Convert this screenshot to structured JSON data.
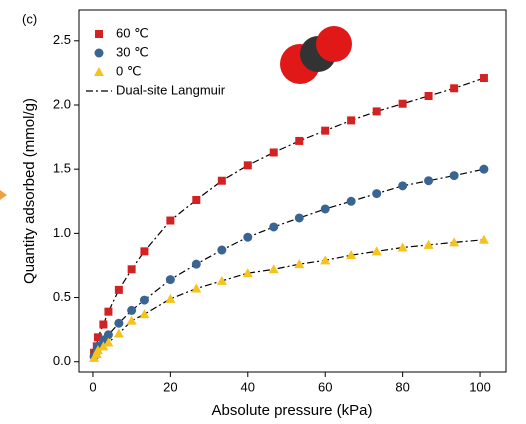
{
  "chart_data": {
    "type": "scatter",
    "annotation": "(c)",
    "x_label": "Absolute pressure (kPa)",
    "y_label": "Quantity adsorbed (mmol/g)",
    "x": [
      0.3,
      1,
      1.3,
      2.7,
      4,
      6.7,
      10,
      13.3,
      20,
      26.7,
      33.3,
      40,
      46.7,
      53.3,
      60,
      66.7,
      73.3,
      80,
      86.7,
      93.3,
      101
    ],
    "series": [
      {
        "name": "60 ℃",
        "color": "#d42222",
        "marker": "square",
        "values": [
          0.07,
          0.12,
          0.19,
          0.29,
          0.39,
          0.56,
          0.72,
          0.86,
          1.1,
          1.26,
          1.41,
          1.53,
          1.63,
          1.72,
          1.8,
          1.88,
          1.95,
          2.01,
          2.07,
          2.13,
          2.21
        ]
      },
      {
        "name": "30 ℃",
        "color": "#3a6592",
        "marker": "circle",
        "values": [
          0.04,
          0.08,
          0.12,
          0.17,
          0.21,
          0.3,
          0.4,
          0.48,
          0.64,
          0.76,
          0.87,
          0.97,
          1.05,
          1.12,
          1.19,
          1.25,
          1.31,
          1.37,
          1.41,
          1.45,
          1.5
        ]
      },
      {
        "name": "0 ℃",
        "color": "#f6c21c",
        "marker": "triangle",
        "values": [
          0.03,
          0.06,
          0.09,
          0.12,
          0.15,
          0.22,
          0.32,
          0.37,
          0.49,
          0.57,
          0.63,
          0.69,
          0.72,
          0.76,
          0.79,
          0.83,
          0.86,
          0.89,
          0.91,
          0.93,
          0.95
        ]
      }
    ],
    "fit": {
      "name": "Dual-site Langmuir",
      "color": "#000000"
    },
    "xlim": [
      -3.6,
      106.7
    ],
    "ylim": [
      -0.08,
      2.74
    ],
    "xticks": [
      0,
      20,
      40,
      60,
      80,
      100
    ],
    "yticks": [
      {
        "value": 0,
        "label": "0.0"
      },
      0.5,
      {
        "value": 1,
        "label": "1.0"
      },
      1.5,
      {
        "value": 2,
        "label": "2.0"
      },
      2.5
    ]
  }
}
